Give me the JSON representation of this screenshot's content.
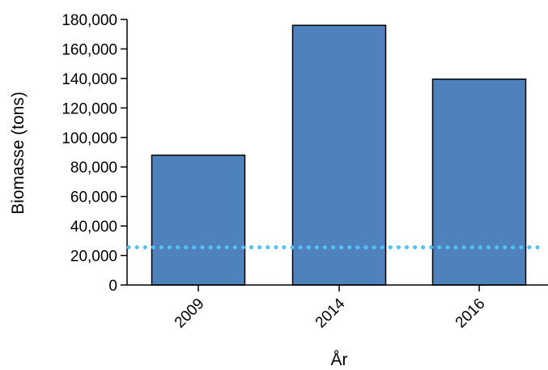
{
  "chart_data": {
    "type": "bar",
    "categories": [
      "2009",
      "2014",
      "2016"
    ],
    "values": [
      88000,
      176000,
      139500
    ],
    "xlabel": "År",
    "ylabel": "Biomasse (tons)",
    "ylim": [
      0,
      180000
    ],
    "yticks": [
      0,
      20000,
      40000,
      60000,
      80000,
      100000,
      120000,
      140000,
      160000,
      180000
    ],
    "ytick_labels": [
      "0",
      "20,000",
      "40,000",
      "60,000",
      "80,000",
      "100,000",
      "120,000",
      "140,000",
      "160,000",
      "180,000"
    ],
    "reference_line": {
      "y": 25500,
      "style": "dotted",
      "color": "#4fc3f7"
    },
    "bar_color": "#4f81bd",
    "grid": false,
    "legend": "none"
  }
}
